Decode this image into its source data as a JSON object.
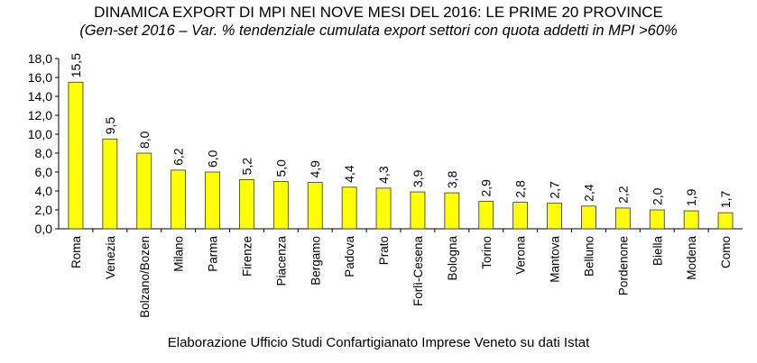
{
  "header": {
    "title": "DINAMICA EXPORT DI MPI NEI NOVE MESI DEL 2016: LE PRIME 20 PROVINCE",
    "subtitle": "(Gen-set 2016 – Var. % tendenziale cumulata export settori con quota addetti in MPI >60%"
  },
  "footer": {
    "source": "Elaborazione Ufficio Studi Confartigianato Imprese Veneto su dati Istat"
  },
  "chart_data": {
    "type": "bar",
    "categories": [
      "Roma",
      "Venezia",
      "Bolzano/Bozen",
      "Milano",
      "Parma",
      "Firenze",
      "Piacenza",
      "Bergamo",
      "Padova",
      "Prato",
      "Forlì-Cesena",
      "Bologna",
      "Torino",
      "Verona",
      "Mantova",
      "Belluno",
      "Pordenone",
      "Biella",
      "Modena",
      "Como"
    ],
    "values": [
      15.5,
      9.5,
      8.0,
      6.2,
      6.0,
      5.2,
      5.0,
      4.9,
      4.4,
      4.3,
      3.9,
      3.8,
      2.9,
      2.8,
      2.7,
      2.4,
      2.2,
      2.0,
      1.9,
      1.7
    ],
    "data_labels": [
      "15,5",
      "9,5",
      "8,0",
      "6,2",
      "6,0",
      "5,2",
      "5,0",
      "4,9",
      "4,4",
      "4,3",
      "3,9",
      "3,8",
      "2,9",
      "2,8",
      "2,7",
      "2,4",
      "2,2",
      "2,0",
      "1,9",
      "1,7"
    ],
    "ylim": [
      0,
      18
    ],
    "yticks": [
      "0,0",
      "2,0",
      "4,0",
      "6,0",
      "8,0",
      "10,0",
      "12,0",
      "14,0",
      "16,0",
      "18,0"
    ],
    "xlabel": "",
    "ylabel": "",
    "grid": false,
    "legend": "none",
    "bar_color": "#ffff00",
    "bar_stroke": "#333333"
  }
}
